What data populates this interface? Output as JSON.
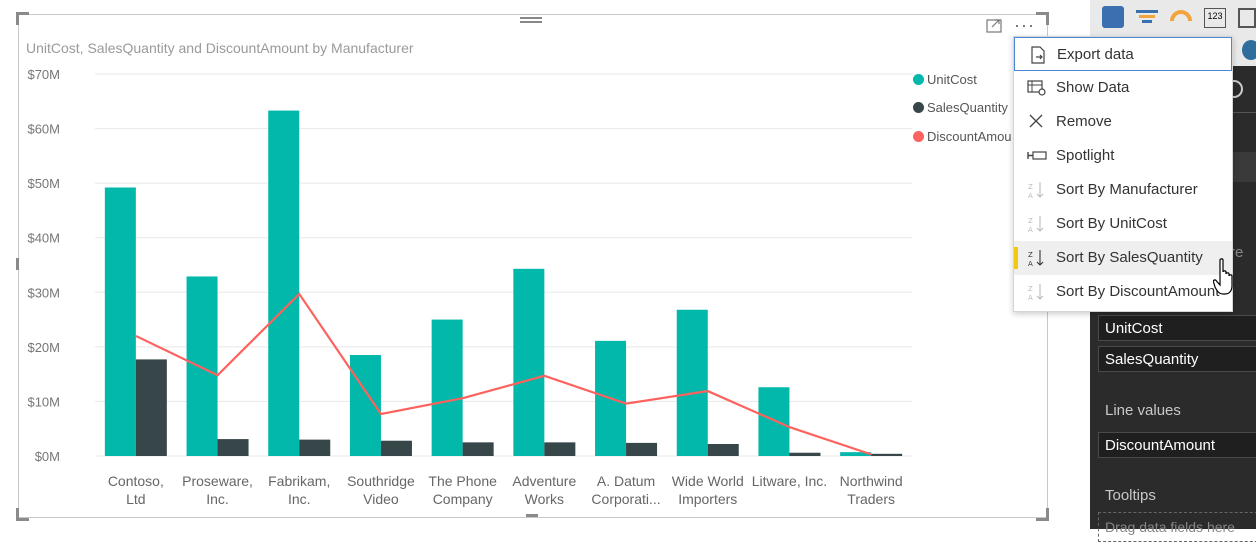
{
  "visual": {
    "title": "UnitCost, SalesQuantity and DiscountAmount by Manufacturer",
    "more_options": "···"
  },
  "chart_data": {
    "type": "bar",
    "title": "UnitCost, SalesQuantity and DiscountAmount by Manufacturer",
    "categories": [
      [
        "Contoso,",
        "Ltd"
      ],
      [
        "Proseware,",
        "Inc."
      ],
      [
        "Fabrikam,",
        "Inc."
      ],
      [
        "Southridge",
        "Video"
      ],
      [
        "The Phone",
        "Company"
      ],
      [
        "Adventure",
        "Works"
      ],
      [
        "A. Datum",
        "Corporati..."
      ],
      [
        "Wide World",
        "Importers"
      ],
      [
        "Litware, Inc."
      ],
      [
        "Northwind",
        "Traders"
      ]
    ],
    "series": [
      {
        "name": "UnitCost",
        "type": "bar",
        "color": "#01b8aa",
        "values": [
          49.2,
          32.9,
          63.3,
          18.5,
          25.0,
          34.3,
          21.1,
          26.8,
          12.6,
          0.7
        ]
      },
      {
        "name": "SalesQuantity",
        "type": "bar",
        "color": "#374649",
        "values": [
          17.7,
          3.1,
          3.0,
          2.8,
          2.5,
          2.5,
          2.4,
          2.2,
          0.6,
          0.4
        ]
      },
      {
        "name": "DiscountAmount",
        "type": "line",
        "color": "#fd625e",
        "values": [
          22.0,
          14.8,
          29.7,
          7.7,
          10.6,
          14.7,
          9.6,
          11.9,
          5.3,
          0.3
        ]
      }
    ],
    "yticks": [
      "$0M",
      "$10M",
      "$20M",
      "$30M",
      "$40M",
      "$50M",
      "$60M",
      "$70M"
    ],
    "ylim": [
      0,
      70
    ],
    "legend": [
      {
        "label": "UnitCost",
        "color": "#01b8aa"
      },
      {
        "label": "SalesQuantity",
        "color": "#374649"
      },
      {
        "label": "DiscountAmou",
        "color": "#fd625e"
      }
    ],
    "grid": true,
    "legend_position": "top-right"
  },
  "context_menu": {
    "items": [
      {
        "label": "Export data",
        "icon": "export-icon"
      },
      {
        "label": "Show Data",
        "icon": "show-data-icon"
      },
      {
        "label": "Remove",
        "icon": "close-icon"
      },
      {
        "label": "Spotlight",
        "icon": "spotlight-icon"
      },
      {
        "label": "Sort By Manufacturer",
        "icon": "sort-icon"
      },
      {
        "label": "Sort By UnitCost",
        "icon": "sort-icon"
      },
      {
        "label": "Sort By SalesQuantity",
        "icon": "sort-icon"
      },
      {
        "label": "Sort By DiscountAmount",
        "icon": "sort-icon"
      }
    ]
  },
  "fields_pane": {
    "partial_text": "re",
    "column_values_fields": [
      "UnitCost",
      "SalesQuantity"
    ],
    "line_values_label": "Line values",
    "line_values_fields": [
      "DiscountAmount"
    ],
    "tooltips_label": "Tooltips",
    "tooltips_placeholder": "Drag data fields here"
  }
}
